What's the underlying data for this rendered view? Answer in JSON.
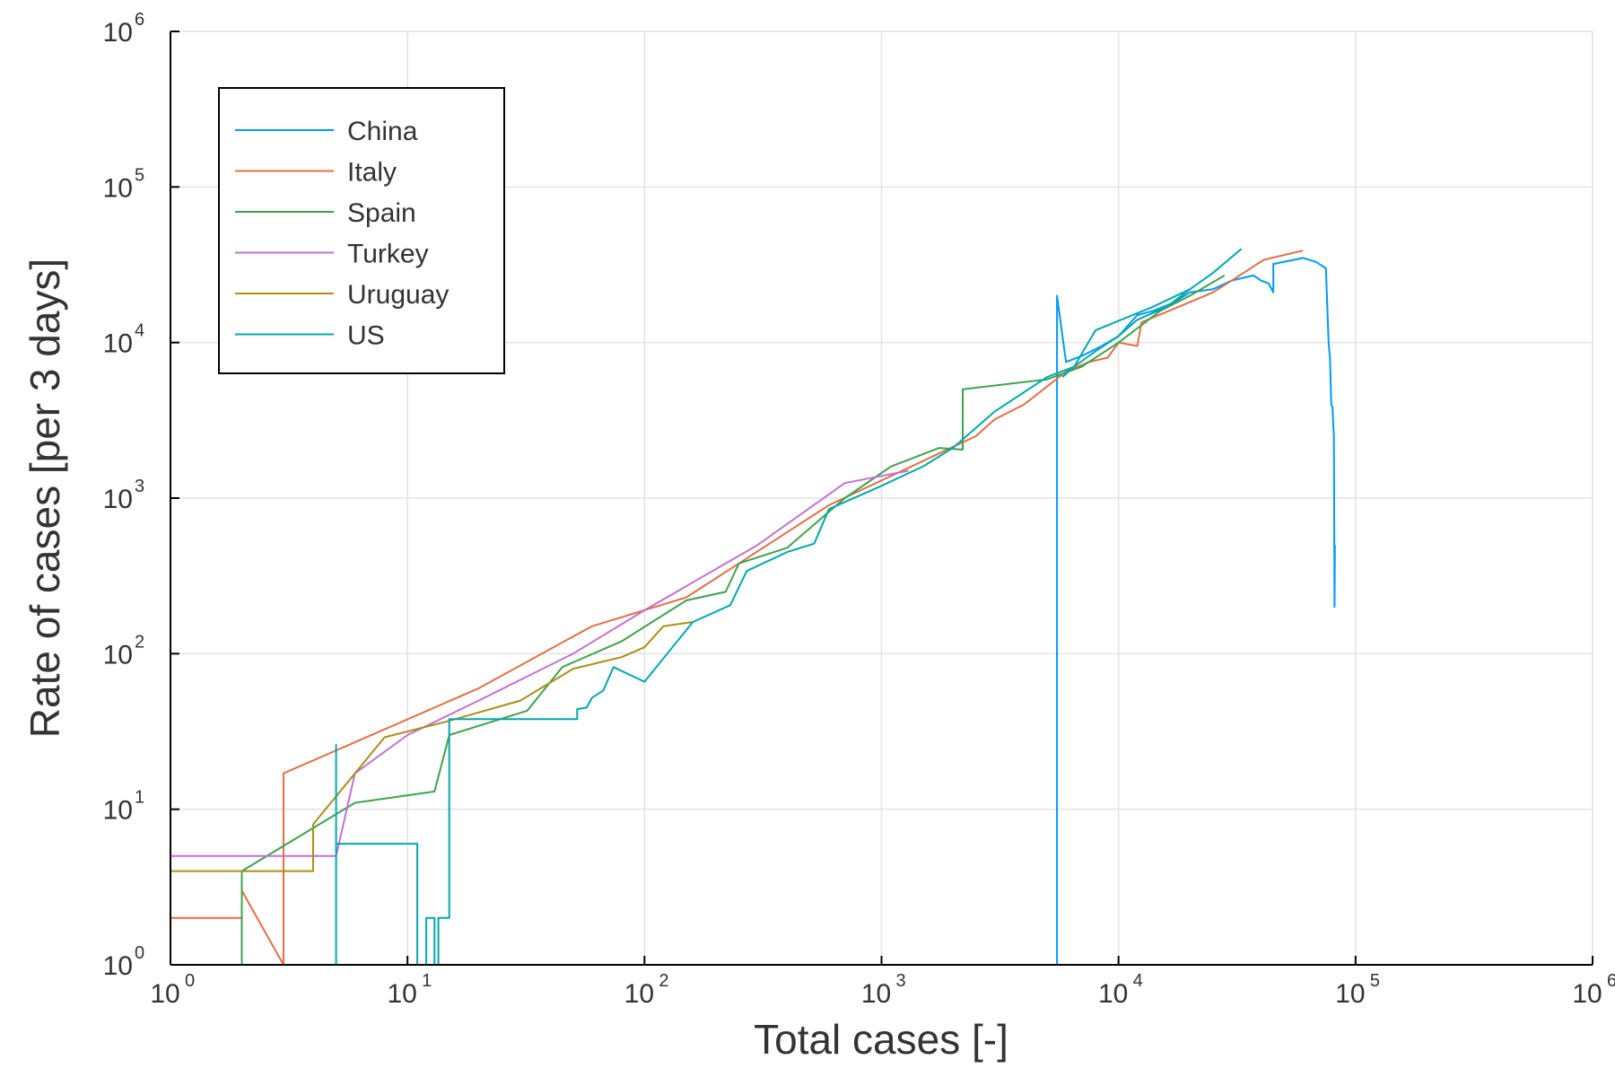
{
  "chart_data": {
    "type": "line",
    "title": "",
    "xlabel": "Total cases [-]",
    "ylabel": "Rate of cases [per 3 days]",
    "xscale": "log",
    "yscale": "log",
    "xlim": [
      1,
      1000000
    ],
    "ylim": [
      1,
      1000000
    ],
    "xticks": [
      {
        "base": "10",
        "exp": "0",
        "value": 1
      },
      {
        "base": "10",
        "exp": "1",
        "value": 10
      },
      {
        "base": "10",
        "exp": "2",
        "value": 100
      },
      {
        "base": "10",
        "exp": "3",
        "value": 1000
      },
      {
        "base": "10",
        "exp": "4",
        "value": 10000
      },
      {
        "base": "10",
        "exp": "5",
        "value": 100000
      },
      {
        "base": "10",
        "exp": "6",
        "value": 1000000
      }
    ],
    "yticks": [
      {
        "base": "10",
        "exp": "0",
        "value": 1
      },
      {
        "base": "10",
        "exp": "1",
        "value": 10
      },
      {
        "base": "10",
        "exp": "2",
        "value": 100
      },
      {
        "base": "10",
        "exp": "3",
        "value": 1000
      },
      {
        "base": "10",
        "exp": "4",
        "value": 10000
      },
      {
        "base": "10",
        "exp": "5",
        "value": 100000
      },
      {
        "base": "10",
        "exp": "6",
        "value": 1000000
      }
    ],
    "grid": true,
    "legend_position": "top-left",
    "series": [
      {
        "name": "China",
        "color": "#009AFA",
        "points": [
          [
            5500,
            1
          ],
          [
            5500,
            20000
          ],
          [
            6000,
            7500
          ],
          [
            7000,
            8200
          ],
          [
            8500,
            9500
          ],
          [
            10000,
            11000
          ],
          [
            12000,
            15000
          ],
          [
            14000,
            16000
          ],
          [
            17000,
            18000
          ],
          [
            20000,
            21000
          ],
          [
            25000,
            22000
          ],
          [
            30000,
            25000
          ],
          [
            37000,
            27000
          ],
          [
            40000,
            25000
          ],
          [
            43000,
            24000
          ],
          [
            45000,
            21000
          ],
          [
            45000,
            32000
          ],
          [
            55000,
            34000
          ],
          [
            60000,
            35000
          ],
          [
            68000,
            33000
          ],
          [
            75000,
            30000
          ],
          [
            77000,
            10000
          ],
          [
            78000,
            8000
          ],
          [
            79000,
            4000
          ],
          [
            80000,
            3800
          ],
          [
            80500,
            3000
          ],
          [
            81000,
            2500
          ],
          [
            81500,
            200
          ],
          [
            81800,
            500
          ]
        ]
      },
      {
        "name": "Italy",
        "color": "#E26F46",
        "points": [
          [
            1,
            2
          ],
          [
            2,
            2
          ],
          [
            2,
            3
          ],
          [
            3,
            1
          ],
          [
            3,
            17
          ],
          [
            20,
            60
          ],
          [
            60,
            150
          ],
          [
            150,
            230
          ],
          [
            250,
            380
          ],
          [
            600,
            900
          ],
          [
            1700,
            1900
          ],
          [
            2500,
            2500
          ],
          [
            3000,
            3200
          ],
          [
            4000,
            4000
          ],
          [
            6000,
            6500
          ],
          [
            7500,
            7500
          ],
          [
            9000,
            8000
          ],
          [
            10000,
            10000
          ],
          [
            12000,
            9500
          ],
          [
            12500,
            13500
          ],
          [
            18000,
            17000
          ],
          [
            25000,
            21000
          ],
          [
            30000,
            25000
          ],
          [
            41000,
            34000
          ],
          [
            60000,
            39000
          ]
        ]
      },
      {
        "name": "Spain",
        "color": "#3DA44D",
        "points": [
          [
            1,
            1
          ],
          [
            2,
            1
          ],
          [
            2,
            4
          ],
          [
            6,
            11
          ],
          [
            13,
            13
          ],
          [
            15,
            30
          ],
          [
            32,
            43
          ],
          [
            45,
            82
          ],
          [
            80,
            120
          ],
          [
            150,
            220
          ],
          [
            220,
            250
          ],
          [
            250,
            380
          ],
          [
            400,
            480
          ],
          [
            700,
            1000
          ],
          [
            1100,
            1600
          ],
          [
            1750,
            2100
          ],
          [
            2200,
            2050
          ],
          [
            2200,
            5000
          ],
          [
            5000,
            5800
          ],
          [
            7000,
            7000
          ],
          [
            10000,
            10000
          ],
          [
            15000,
            16000
          ],
          [
            20000,
            20000
          ],
          [
            28000,
            27000
          ]
        ]
      },
      {
        "name": "Turkey",
        "color": "#C271D2",
        "points": [
          [
            1,
            5
          ],
          [
            5,
            5
          ],
          [
            6,
            17
          ],
          [
            10,
            30
          ],
          [
            20,
            50
          ],
          [
            50,
            100
          ],
          [
            100,
            190
          ],
          [
            300,
            500
          ],
          [
            700,
            1250
          ],
          [
            1300,
            1500
          ]
        ]
      },
      {
        "name": "Uruguay",
        "color": "#AC8E18",
        "points": [
          [
            1,
            4
          ],
          [
            4,
            4
          ],
          [
            4,
            8
          ],
          [
            8,
            29
          ],
          [
            15,
            37
          ],
          [
            30,
            50
          ],
          [
            50,
            80
          ],
          [
            80,
            95
          ],
          [
            100,
            110
          ],
          [
            120,
            150
          ],
          [
            160,
            160
          ]
        ]
      },
      {
        "name": "US",
        "color": "#00A9AD",
        "points": [
          [
            5,
            1
          ],
          [
            5,
            26
          ],
          [
            5,
            6
          ],
          [
            11,
            6
          ],
          [
            11,
            1
          ],
          [
            12,
            1
          ],
          [
            12,
            2
          ],
          [
            13,
            2
          ],
          [
            13,
            1
          ],
          [
            13.5,
            1
          ],
          [
            13.5,
            2
          ],
          [
            15,
            2
          ],
          [
            15,
            38
          ],
          [
            52,
            38
          ],
          [
            52,
            44
          ],
          [
            57,
            45
          ],
          [
            60,
            52
          ],
          [
            67,
            58
          ],
          [
            74,
            82
          ],
          [
            100,
            66
          ],
          [
            160,
            160
          ],
          [
            230,
            205
          ],
          [
            270,
            340
          ],
          [
            400,
            450
          ],
          [
            520,
            510
          ],
          [
            600,
            850
          ],
          [
            1000,
            1200
          ],
          [
            1500,
            1600
          ],
          [
            2000,
            2100
          ],
          [
            3000,
            3600
          ],
          [
            5000,
            6000
          ],
          [
            6500,
            7000
          ],
          [
            8000,
            8800
          ],
          [
            10000,
            11000
          ],
          [
            12000,
            14000
          ],
          [
            16000,
            17000
          ],
          [
            20000,
            22000
          ],
          [
            25000,
            28000
          ],
          [
            33000,
            40000
          ]
        ]
      },
      {
        "name": "",
        "color": "#00A9AD",
        "points": [
          [
            5800,
            6000
          ],
          [
            6500,
            7000
          ],
          [
            8000,
            12000
          ],
          [
            14000,
            17000
          ],
          [
            20000,
            22000
          ]
        ]
      }
    ]
  }
}
